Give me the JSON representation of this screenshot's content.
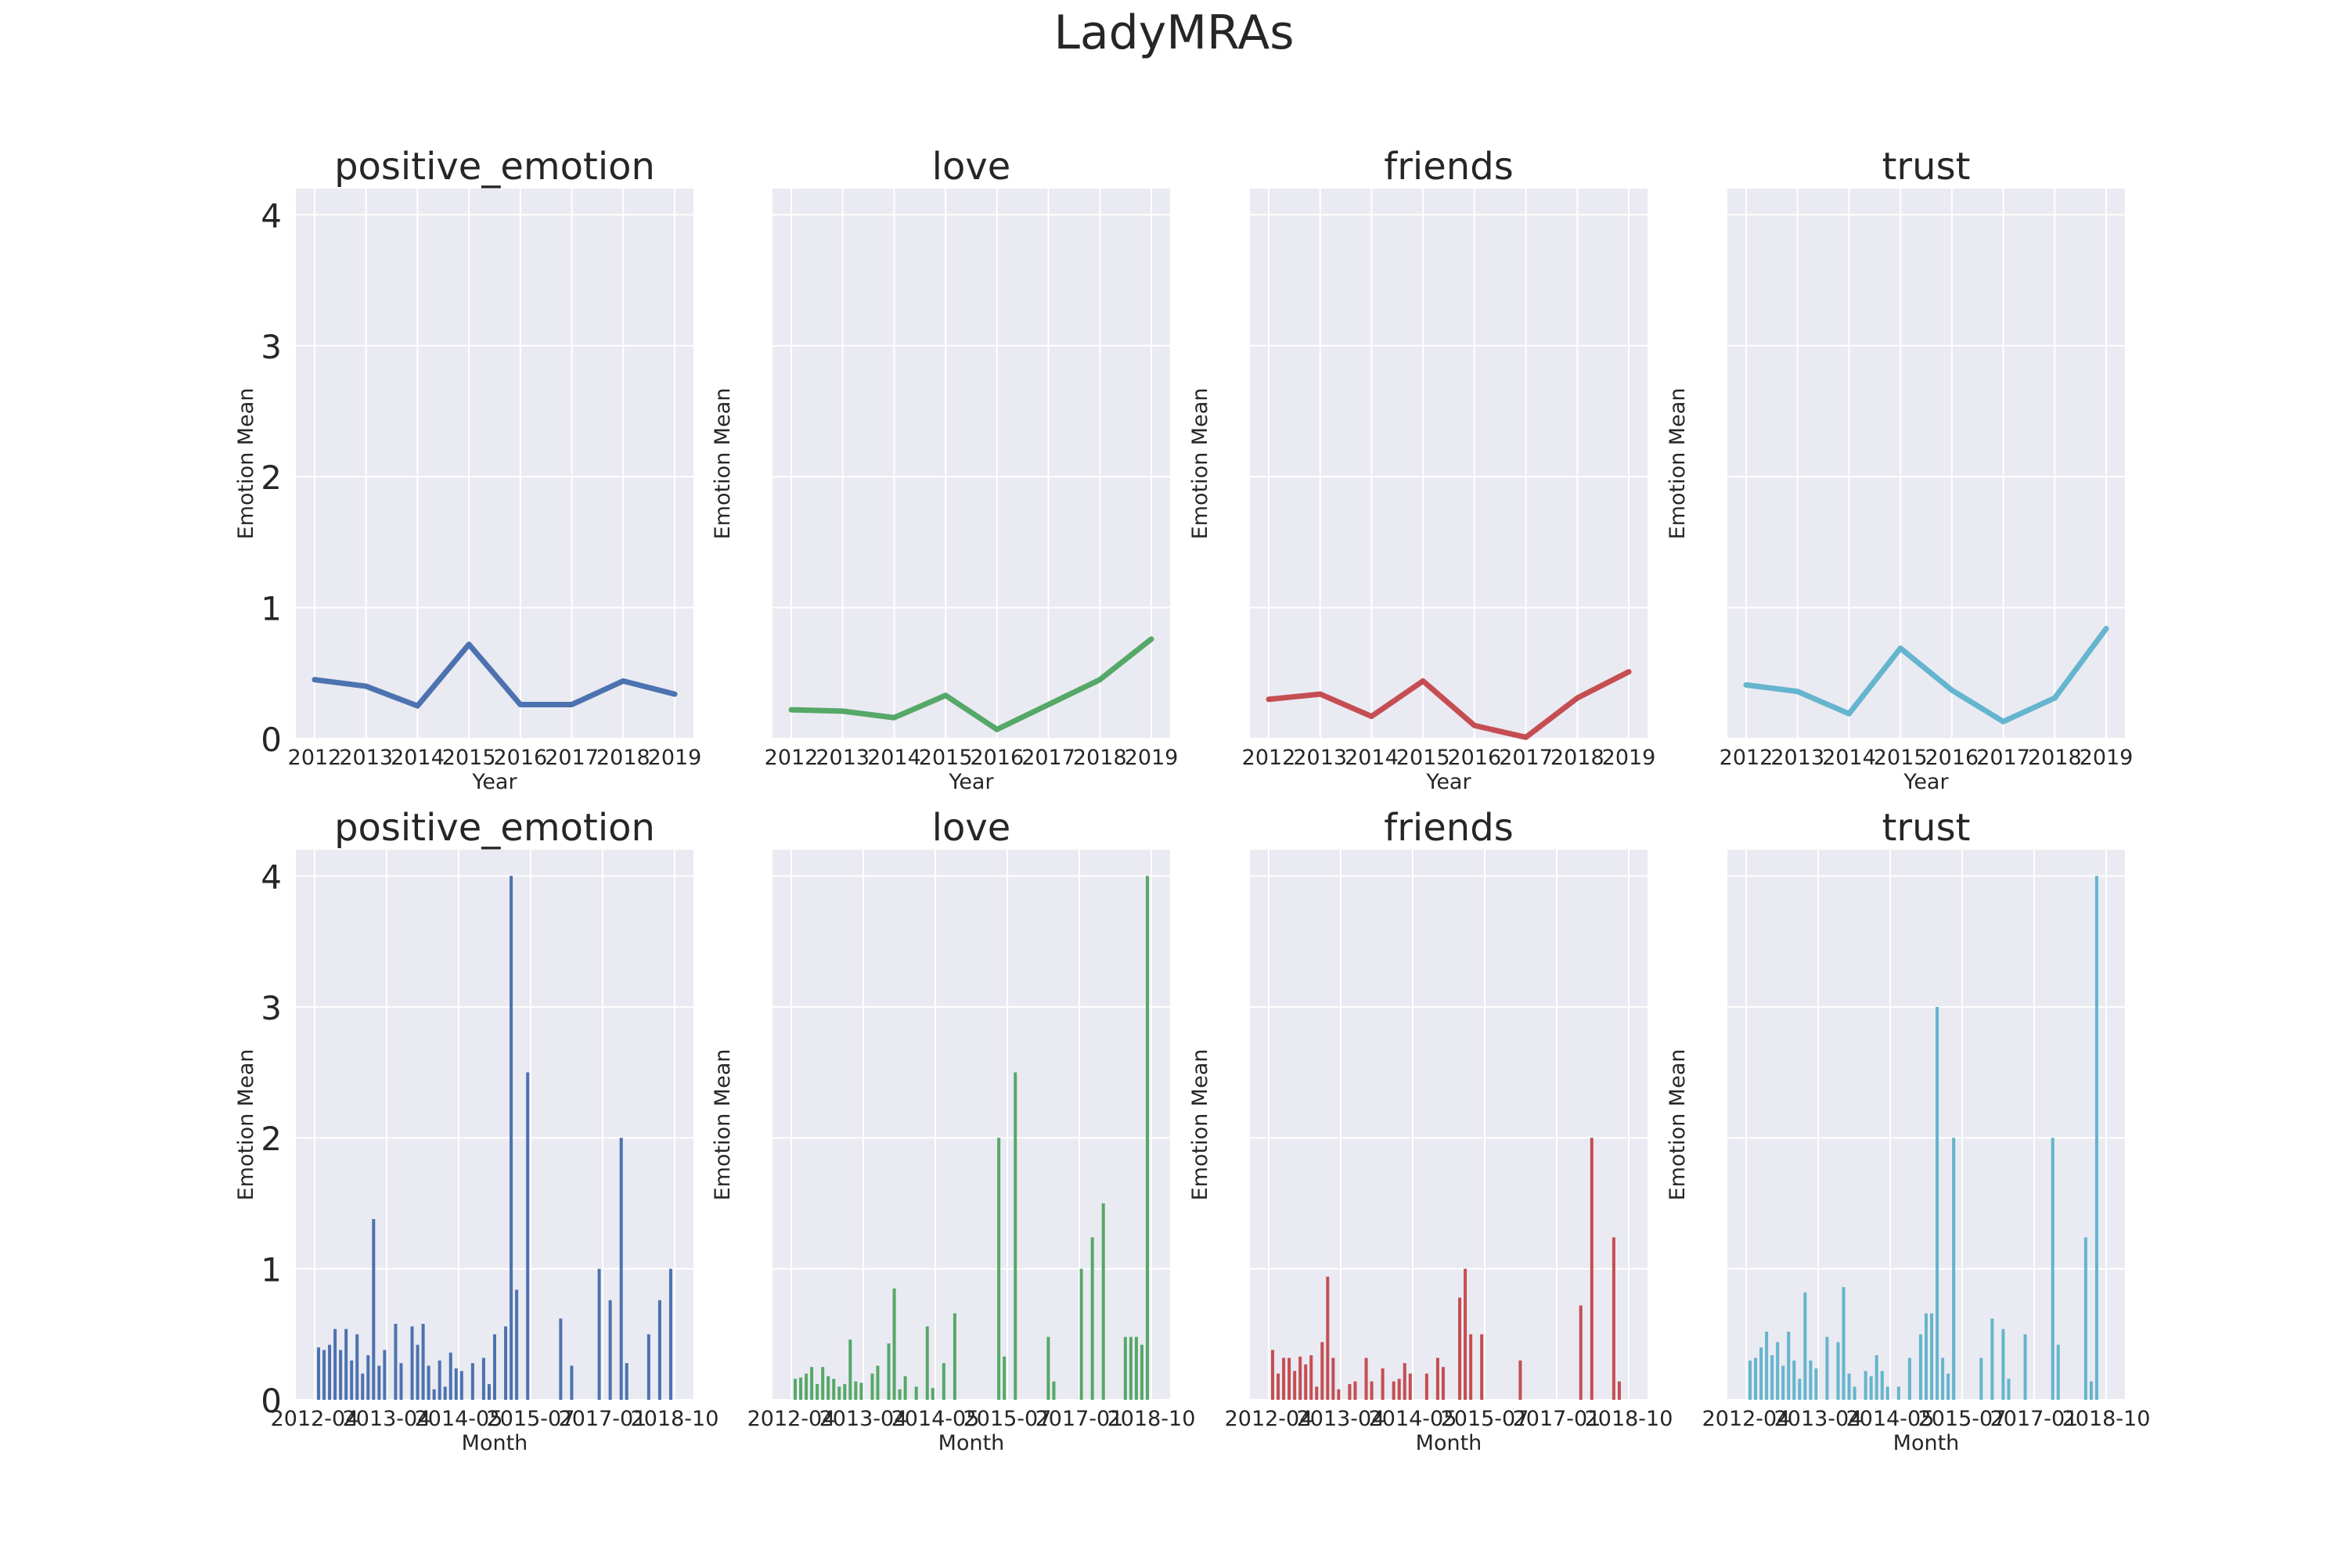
{
  "title": "LadyMRAs",
  "colors": {
    "positive_emotion": "#4c72b0",
    "love": "#55a868",
    "friends": "#c44e52",
    "trust": "#64b5cd"
  },
  "chart_data": [
    {
      "type": "line",
      "row": "yearly",
      "emotion": "positive_emotion",
      "title": "positive_emotion",
      "xlabel": "Year",
      "ylabel": "Emotion Mean",
      "ylim": [
        0,
        4.2
      ],
      "x": [
        "2012",
        "2013",
        "2014",
        "2015",
        "2016",
        "2017",
        "2018",
        "2019"
      ],
      "values": [
        0.45,
        0.4,
        0.25,
        0.72,
        0.26,
        0.26,
        0.44,
        0.34
      ]
    },
    {
      "type": "line",
      "row": "yearly",
      "emotion": "love",
      "title": "love",
      "xlabel": "Year",
      "ylabel": "Emotion Mean",
      "ylim": [
        0,
        4.2
      ],
      "x": [
        "2012",
        "2013",
        "2014",
        "2015",
        "2016",
        "2017",
        "2018",
        "2019"
      ],
      "values": [
        0.22,
        0.21,
        0.16,
        0.33,
        0.07,
        0.26,
        0.45,
        0.76
      ]
    },
    {
      "type": "line",
      "row": "yearly",
      "emotion": "friends",
      "title": "friends",
      "xlabel": "Year",
      "ylabel": "Emotion Mean",
      "ylim": [
        0,
        4.2
      ],
      "x": [
        "2012",
        "2013",
        "2014",
        "2015",
        "2016",
        "2017",
        "2018",
        "2019"
      ],
      "values": [
        0.3,
        0.34,
        0.17,
        0.44,
        0.1,
        0.01,
        0.31,
        0.51
      ]
    },
    {
      "type": "line",
      "row": "yearly",
      "emotion": "trust",
      "title": "trust",
      "xlabel": "Year",
      "ylabel": "Emotion Mean",
      "ylim": [
        0,
        4.2
      ],
      "x": [
        "2012",
        "2013",
        "2014",
        "2015",
        "2016",
        "2017",
        "2018",
        "2019"
      ],
      "values": [
        0.41,
        0.36,
        0.19,
        0.69,
        0.37,
        0.13,
        0.31,
        0.84
      ]
    },
    {
      "type": "bar",
      "row": "monthly",
      "emotion": "positive_emotion",
      "title": "positive_emotion",
      "xlabel": "Month",
      "ylabel": "Emotion Mean",
      "ylim": [
        0,
        4.2
      ],
      "x_ticks": [
        "2012-04",
        "2013-04",
        "2014-05",
        "2015-07",
        "2017-01",
        "2018-10"
      ],
      "bars": [
        [
          1,
          0.4
        ],
        [
          2,
          0.38
        ],
        [
          3,
          0.42
        ],
        [
          4,
          0.54
        ],
        [
          5,
          0.38
        ],
        [
          6,
          0.54
        ],
        [
          7,
          0.3
        ],
        [
          8,
          0.5
        ],
        [
          9,
          0.2
        ],
        [
          10,
          0.34
        ],
        [
          11,
          1.38
        ],
        [
          12,
          0.26
        ],
        [
          13,
          0.38
        ],
        [
          15,
          0.58
        ],
        [
          16,
          0.28
        ],
        [
          18,
          0.56
        ],
        [
          19,
          0.42
        ],
        [
          20,
          0.58
        ],
        [
          21,
          0.26
        ],
        [
          22,
          0.08
        ],
        [
          23,
          0.3
        ],
        [
          24,
          0.1
        ],
        [
          25,
          0.36
        ],
        [
          26,
          0.24
        ],
        [
          27,
          0.22
        ],
        [
          29,
          0.28
        ],
        [
          31,
          0.32
        ],
        [
          32,
          0.12
        ],
        [
          33,
          0.5
        ],
        [
          35,
          0.56
        ],
        [
          36,
          4.0
        ],
        [
          37,
          0.84
        ],
        [
          39,
          2.5
        ],
        [
          45,
          0.62
        ],
        [
          47,
          0.26
        ],
        [
          52,
          1.0
        ],
        [
          54,
          0.76
        ],
        [
          56,
          2.0
        ],
        [
          57,
          0.28
        ],
        [
          61,
          0.5
        ],
        [
          63,
          0.76
        ],
        [
          65,
          1.0
        ]
      ]
    },
    {
      "type": "bar",
      "row": "monthly",
      "emotion": "love",
      "title": "love",
      "xlabel": "Month",
      "ylabel": "Emotion Mean",
      "ylim": [
        0,
        4.2
      ],
      "x_ticks": [
        "2012-04",
        "2013-04",
        "2014-05",
        "2015-07",
        "2017-01",
        "2018-10"
      ],
      "bars": [
        [
          1,
          0.16
        ],
        [
          2,
          0.17
        ],
        [
          3,
          0.2
        ],
        [
          4,
          0.25
        ],
        [
          5,
          0.12
        ],
        [
          6,
          0.25
        ],
        [
          7,
          0.18
        ],
        [
          8,
          0.16
        ],
        [
          9,
          0.1
        ],
        [
          10,
          0.12
        ],
        [
          11,
          0.46
        ],
        [
          12,
          0.14
        ],
        [
          13,
          0.13
        ],
        [
          15,
          0.2
        ],
        [
          16,
          0.26
        ],
        [
          18,
          0.43
        ],
        [
          19,
          0.85
        ],
        [
          20,
          0.08
        ],
        [
          21,
          0.18
        ],
        [
          23,
          0.1
        ],
        [
          25,
          0.56
        ],
        [
          26,
          0.09
        ],
        [
          28,
          0.28
        ],
        [
          30,
          0.66
        ],
        [
          38,
          2.0
        ],
        [
          39,
          0.33
        ],
        [
          41,
          2.5
        ],
        [
          47,
          0.48
        ],
        [
          48,
          0.14
        ],
        [
          53,
          1.0
        ],
        [
          55,
          1.24
        ],
        [
          57,
          1.5
        ],
        [
          61,
          0.48
        ],
        [
          62,
          0.48
        ],
        [
          63,
          0.48
        ],
        [
          64,
          0.42
        ],
        [
          65,
          4.0
        ]
      ]
    },
    {
      "type": "bar",
      "row": "monthly",
      "emotion": "friends",
      "title": "friends",
      "xlabel": "Month",
      "ylabel": "Emotion Mean",
      "ylim": [
        0,
        4.2
      ],
      "x_ticks": [
        "2012-04",
        "2013-04",
        "2014-05",
        "2015-07",
        "2017-01",
        "2018-10"
      ],
      "bars": [
        [
          1,
          0.38
        ],
        [
          2,
          0.2
        ],
        [
          3,
          0.32
        ],
        [
          4,
          0.32
        ],
        [
          5,
          0.22
        ],
        [
          6,
          0.33
        ],
        [
          7,
          0.27
        ],
        [
          8,
          0.34
        ],
        [
          9,
          0.1
        ],
        [
          10,
          0.44
        ],
        [
          11,
          0.94
        ],
        [
          12,
          0.32
        ],
        [
          13,
          0.08
        ],
        [
          15,
          0.12
        ],
        [
          16,
          0.14
        ],
        [
          18,
          0.32
        ],
        [
          19,
          0.14
        ],
        [
          21,
          0.24
        ],
        [
          23,
          0.14
        ],
        [
          24,
          0.16
        ],
        [
          25,
          0.28
        ],
        [
          26,
          0.2
        ],
        [
          29,
          0.2
        ],
        [
          31,
          0.32
        ],
        [
          32,
          0.25
        ],
        [
          35,
          0.78
        ],
        [
          36,
          1.0
        ],
        [
          37,
          0.5
        ],
        [
          39,
          0.5
        ],
        [
          46,
          0.3
        ],
        [
          57,
          0.72
        ],
        [
          59,
          2.0
        ],
        [
          63,
          1.24
        ],
        [
          64,
          0.14
        ]
      ]
    },
    {
      "type": "bar",
      "row": "monthly",
      "emotion": "trust",
      "title": "trust",
      "xlabel": "Month",
      "ylabel": "Emotion Mean",
      "ylim": [
        0,
        4.2
      ],
      "x_ticks": [
        "2012-04",
        "2013-04",
        "2014-05",
        "2015-07",
        "2017-01",
        "2018-10"
      ],
      "bars": [
        [
          1,
          0.3
        ],
        [
          2,
          0.32
        ],
        [
          3,
          0.4
        ],
        [
          4,
          0.52
        ],
        [
          5,
          0.34
        ],
        [
          6,
          0.44
        ],
        [
          7,
          0.26
        ],
        [
          8,
          0.52
        ],
        [
          9,
          0.3
        ],
        [
          10,
          0.16
        ],
        [
          11,
          0.82
        ],
        [
          12,
          0.3
        ],
        [
          13,
          0.24
        ],
        [
          15,
          0.48
        ],
        [
          17,
          0.44
        ],
        [
          18,
          0.86
        ],
        [
          19,
          0.2
        ],
        [
          20,
          0.1
        ],
        [
          22,
          0.22
        ],
        [
          23,
          0.18
        ],
        [
          24,
          0.34
        ],
        [
          25,
          0.22
        ],
        [
          26,
          0.1
        ],
        [
          28,
          0.1
        ],
        [
          30,
          0.32
        ],
        [
          32,
          0.5
        ],
        [
          33,
          0.66
        ],
        [
          34,
          0.66
        ],
        [
          35,
          3.0
        ],
        [
          36,
          0.32
        ],
        [
          37,
          0.2
        ],
        [
          38,
          2.0
        ],
        [
          43,
          0.32
        ],
        [
          45,
          0.62
        ],
        [
          47,
          0.54
        ],
        [
          48,
          0.16
        ],
        [
          51,
          0.5
        ],
        [
          56,
          2.0
        ],
        [
          57,
          0.42
        ],
        [
          62,
          1.24
        ],
        [
          63,
          0.14
        ],
        [
          64,
          4.0
        ]
      ]
    }
  ]
}
